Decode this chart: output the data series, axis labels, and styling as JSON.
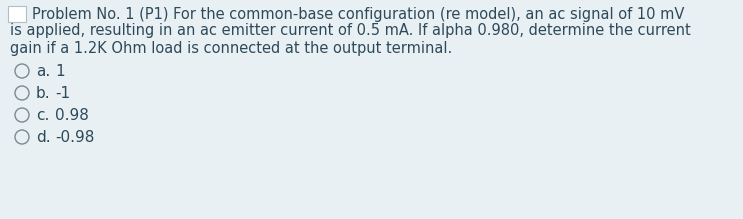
{
  "background_color": "#e8f0f4",
  "text_color": "#2e4a5a",
  "option_circle_color": "#7a8a94",
  "title_box_color": "#ffffff",
  "title_box_border": "#c0cdd4",
  "problem_text_line1": "Problem No. 1 (P1) For the common-base configuration (re model), an ac signal of 10 mV",
  "problem_text_line2": "is applied, resulting in an ac emitter current of 0.5 mA. If alpha 0.980, determine the current",
  "problem_text_line3": "gain if a 1.2K Ohm load is connected at the output terminal.",
  "options": [
    {
      "label": "a.",
      "value": "1"
    },
    {
      "label": "b.",
      "value": "-1"
    },
    {
      "label": "c.",
      "value": "0.98"
    },
    {
      "label": "d.",
      "value": "-0.98"
    }
  ],
  "font_size_problem": 10.5,
  "font_size_options": 11.0,
  "font_family": "DejaVu Sans"
}
